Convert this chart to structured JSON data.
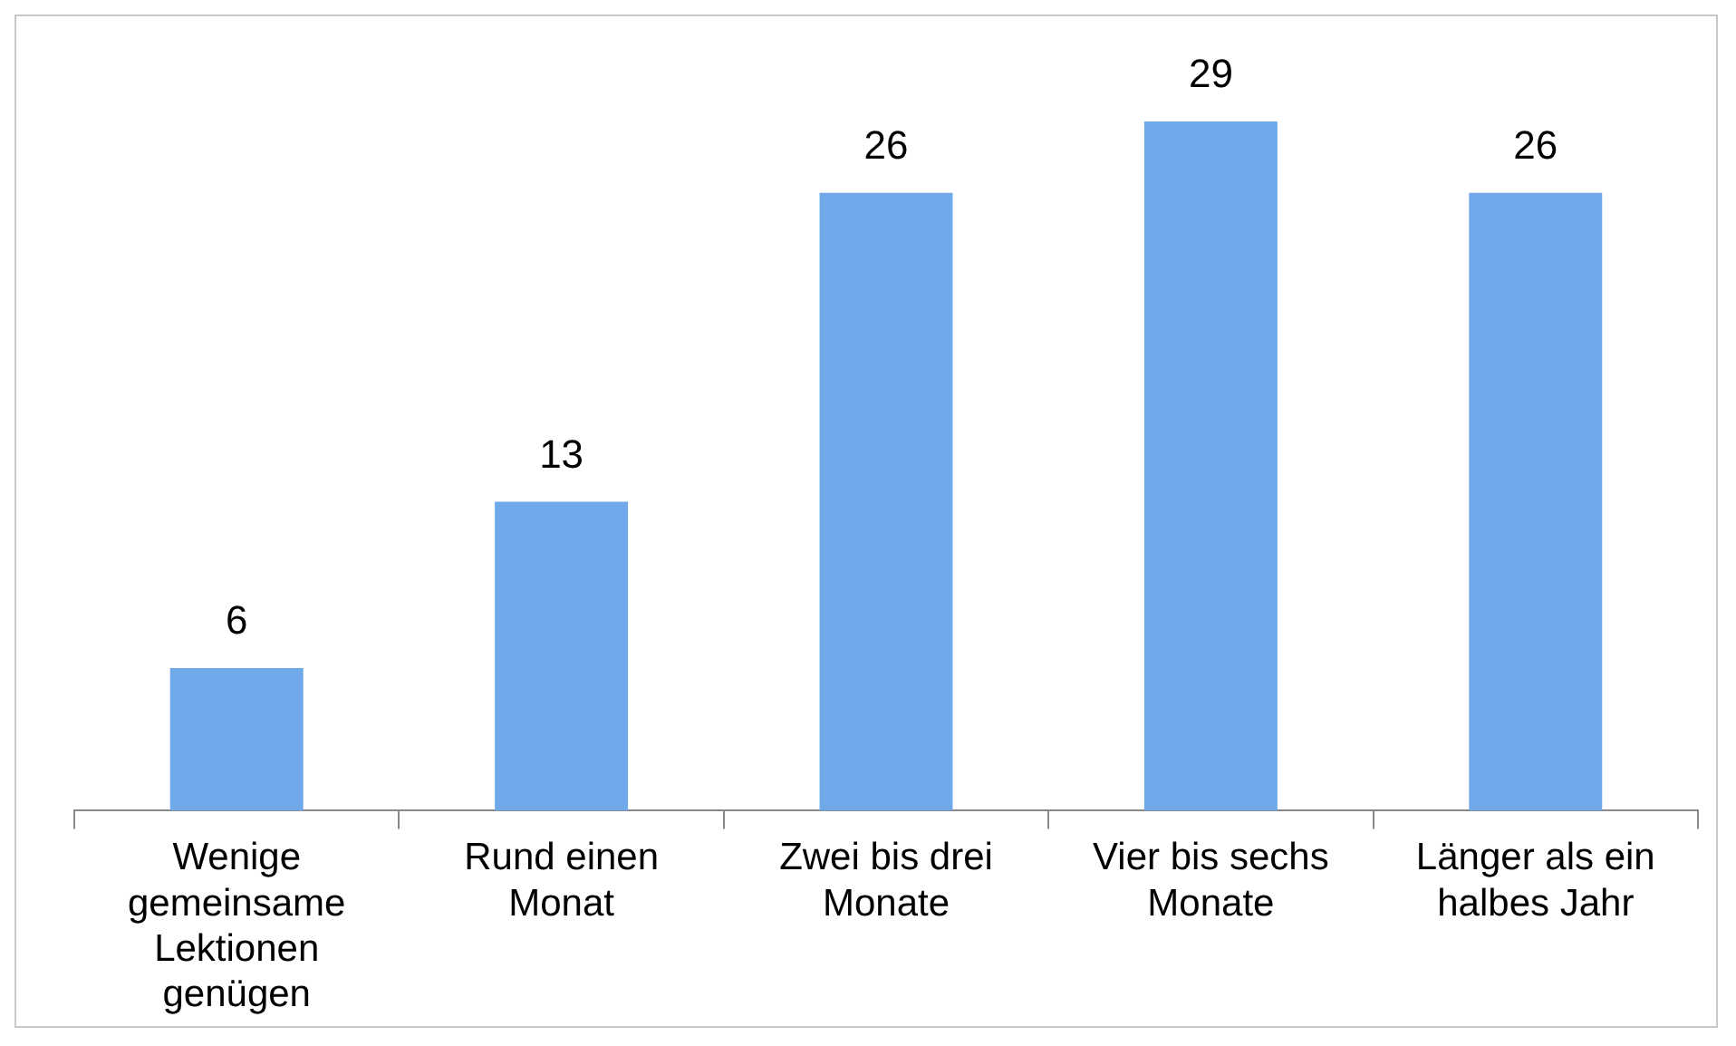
{
  "chart_data": {
    "type": "bar",
    "categories": [
      "Wenige gemeinsame Lektionen genügen",
      "Rund einen Monat",
      "Zwei bis drei Monate",
      "Vier bis sechs Monate",
      "Länger als ein halbes Jahr"
    ],
    "values": [
      6,
      13,
      26,
      29,
      26
    ],
    "color": "#6fa9ea",
    "data_labels": true,
    "grid": false,
    "legend": false
  }
}
